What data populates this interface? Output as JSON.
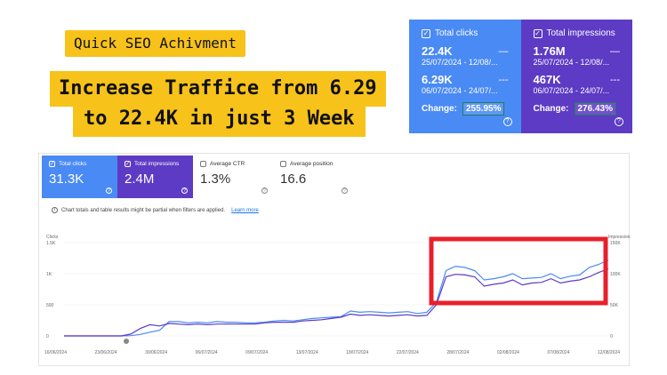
{
  "headline": {
    "tag": "Quick SEO Achivment",
    "line1": "Increase Traffice from 6.29",
    "line2": "to 22.4K in just 3 Week"
  },
  "comparison": {
    "clicks": {
      "label": "Total clicks",
      "current_value": "22.4K",
      "current_range": "25/07/2024 - 12/08/...",
      "previous_value": "6.29K",
      "previous_range": "06/07/2024 - 24/07/...",
      "change_label": "Change:",
      "change_value": "255.95%"
    },
    "impressions": {
      "label": "Total impressions",
      "current_value": "1.76M",
      "current_range": "25/07/2024 - 12/08/...",
      "previous_value": "467K",
      "previous_range": "06/07/2024 - 24/07/...",
      "change_label": "Change:",
      "change_value": "276.43%"
    }
  },
  "metrics": [
    {
      "label": "Total clicks",
      "value": "31.3K",
      "selected": true
    },
    {
      "label": "Total impressions",
      "value": "2.4M",
      "selected": true
    },
    {
      "label": "Average CTR",
      "value": "1.3%",
      "selected": false
    },
    {
      "label": "Average position",
      "value": "16.6",
      "selected": false
    }
  ],
  "notice": {
    "text": "Chart totals and table results might be partial when filters are applied.",
    "link": "Learn more"
  },
  "colors": {
    "clicks": "#4a8af4",
    "impressions": "#5d3bc4",
    "highlight": "#e8202a",
    "tag": "#f7c21a"
  },
  "chart_data": {
    "type": "line",
    "ylabel_left": "Clicks",
    "ylabel_right": "Impressions",
    "y_ticks_left": [
      "1.5K",
      "1K",
      "500",
      "0"
    ],
    "y_ticks_right": [
      "150K",
      "100K",
      "50K",
      "0"
    ],
    "ylim_left": [
      0,
      1500
    ],
    "ylim_right": [
      0,
      150000
    ],
    "x_ticks": [
      "16/06/2024",
      "23/06/2024",
      "30/06/2024",
      "06/07/2024",
      "09/07/2024",
      "13/07/2024",
      "18/07/2024",
      "22/07/2024",
      "28/07/2024",
      "02/08/2024",
      "07/08/2024",
      "12/08/2024"
    ],
    "x_count": 58,
    "series": [
      {
        "name": "Total clicks",
        "axis": "left",
        "values": [
          0,
          0,
          0,
          0,
          0,
          0,
          0,
          5,
          25,
          60,
          90,
          230,
          230,
          210,
          220,
          210,
          230,
          220,
          220,
          210,
          210,
          220,
          240,
          250,
          240,
          260,
          280,
          290,
          300,
          310,
          400,
          380,
          390,
          380,
          370,
          380,
          390,
          360,
          380,
          540,
          1050,
          1120,
          1100,
          1050,
          900,
          920,
          950,
          1000,
          920,
          930,
          940,
          1000,
          920,
          960,
          980,
          1100,
          1150,
          1220
        ]
      },
      {
        "name": "Total impressions",
        "axis": "right",
        "values": [
          0,
          0,
          0,
          0,
          0,
          0,
          0,
          3000,
          12000,
          18000,
          16000,
          20000,
          19000,
          18000,
          19000,
          18000,
          19000,
          19000,
          19000,
          19000,
          19000,
          21000,
          22000,
          22000,
          22000,
          24000,
          25000,
          26000,
          28000,
          30000,
          35000,
          33000,
          34000,
          33000,
          32000,
          33000,
          34000,
          32000,
          33000,
          50000,
          95000,
          99000,
          98000,
          95000,
          80000,
          83000,
          85000,
          90000,
          82000,
          85000,
          86000,
          92000,
          85000,
          88000,
          90000,
          95000,
          102000,
          108000
        ]
      }
    ]
  }
}
